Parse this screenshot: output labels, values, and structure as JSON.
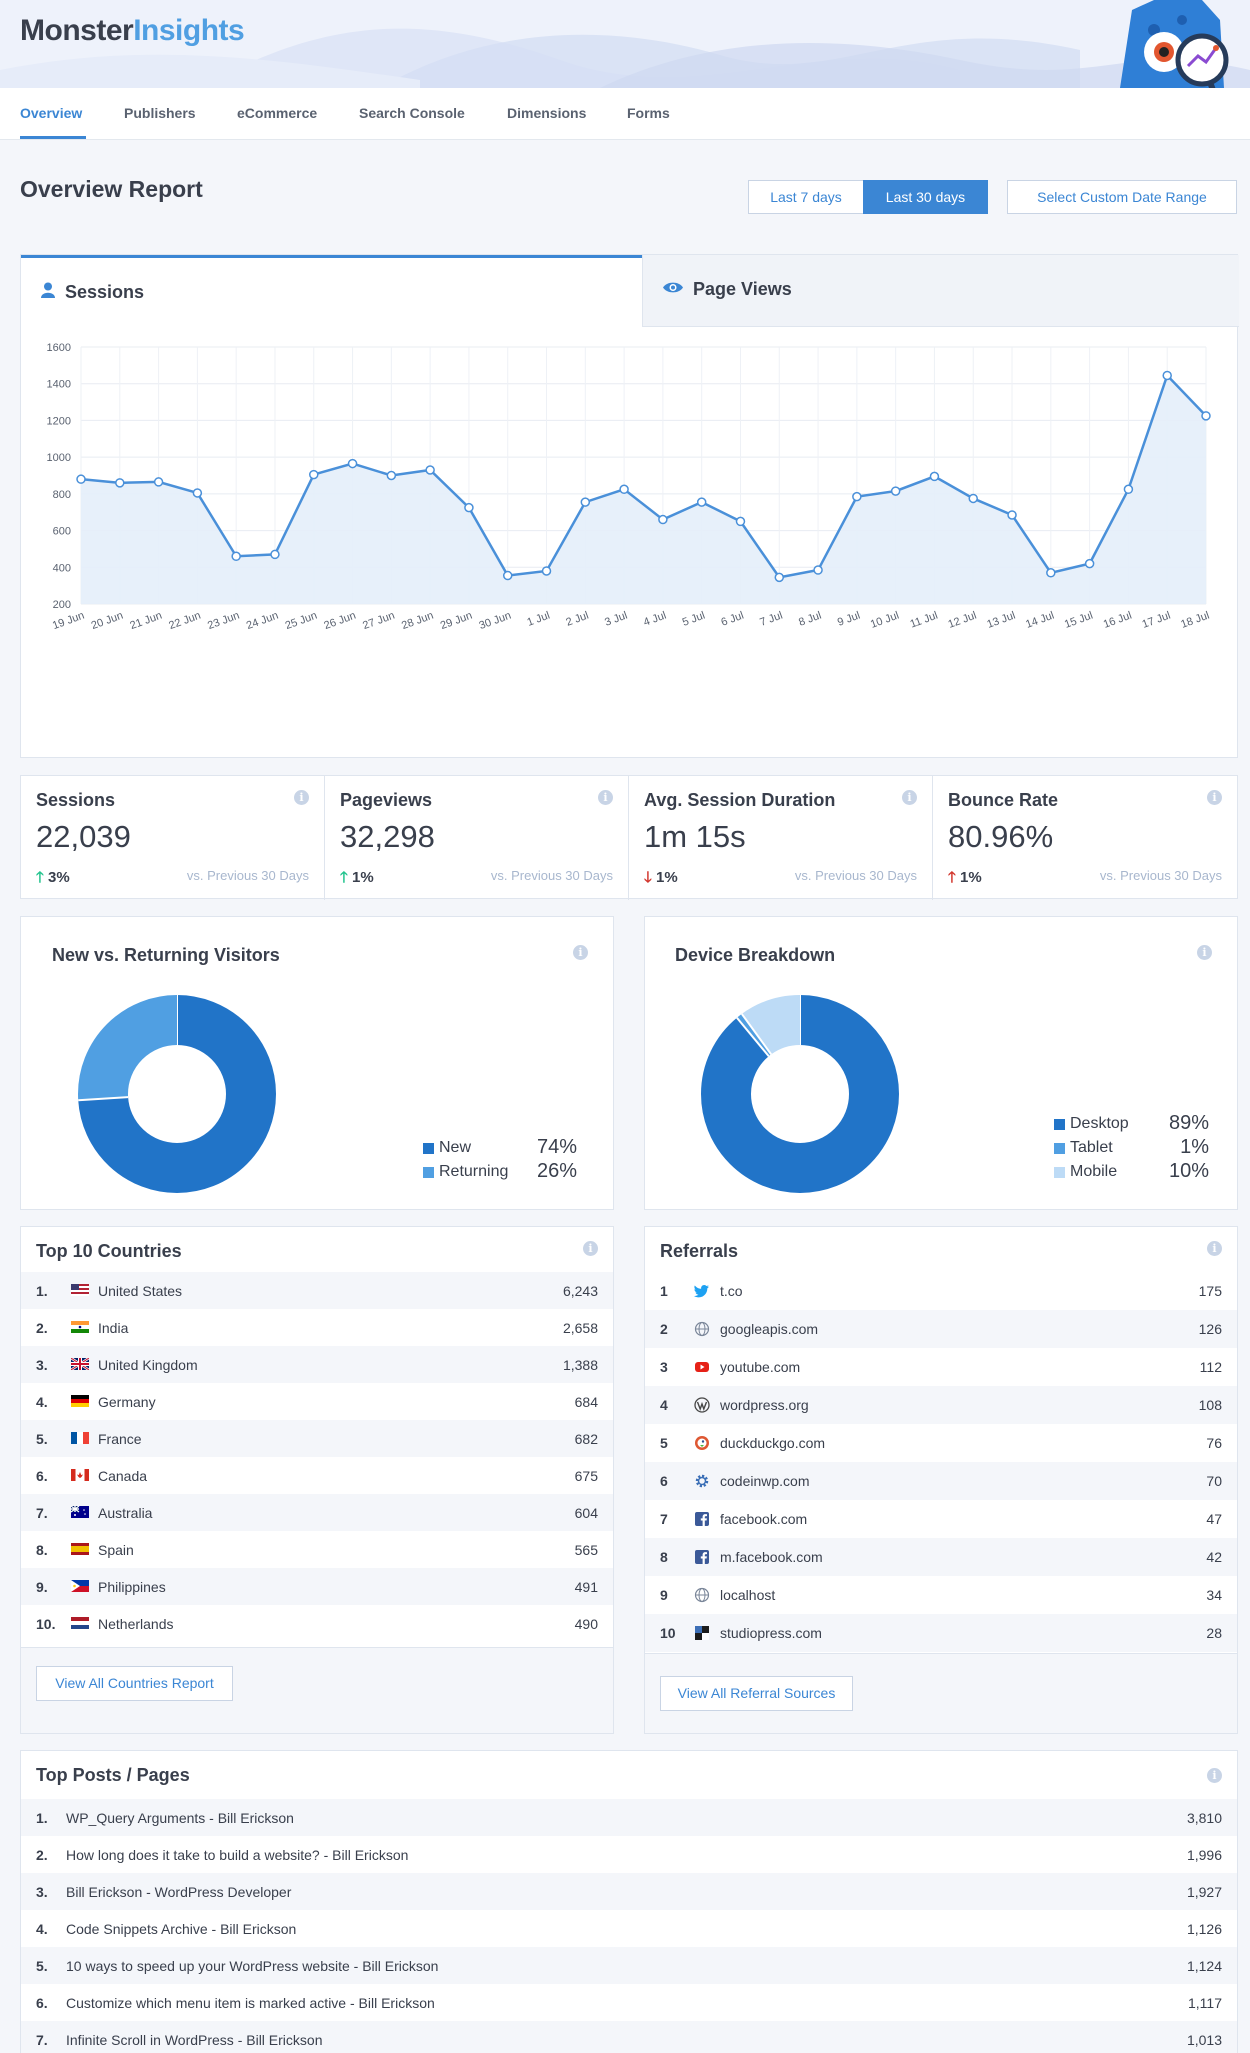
{
  "brand": {
    "part1": "Monster",
    "part2": "Insights"
  },
  "nav": {
    "items": [
      "Overview",
      "Publishers",
      "eCommerce",
      "Search Console",
      "Dimensions",
      "Forms"
    ],
    "active": "Overview"
  },
  "page_title": "Overview Report",
  "date_buttons": {
    "last7": "Last 7 days",
    "last30": "Last 30 days",
    "custom": "Select Custom Date Range",
    "active": "Last 30 days"
  },
  "chart_tabs": {
    "sessions": "Sessions",
    "pageviews": "Page Views",
    "active": "Sessions"
  },
  "chart_data": {
    "type": "area",
    "title": "",
    "xlabel": "",
    "ylabel": "",
    "ylim": [
      200,
      1600
    ],
    "yticks": [
      200,
      400,
      600,
      800,
      1000,
      1200,
      1400,
      1600
    ],
    "grid": true,
    "categories": [
      "19 Jun",
      "20 Jun",
      "21 Jun",
      "22 Jun",
      "23 Jun",
      "24 Jun",
      "25 Jun",
      "26 Jun",
      "27 Jun",
      "28 Jun",
      "29 Jun",
      "30 Jun",
      "1 Jul",
      "2 Jul",
      "3 Jul",
      "4 Jul",
      "5 Jul",
      "6 Jul",
      "7 Jul",
      "8 Jul",
      "9 Jul",
      "10 Jul",
      "11 Jul",
      "12 Jul",
      "13 Jul",
      "14 Jul",
      "15 Jul",
      "16 Jul",
      "17 Jul",
      "18 Jul"
    ],
    "values": [
      880,
      860,
      865,
      805,
      460,
      470,
      905,
      965,
      900,
      930,
      725,
      355,
      380,
      755,
      825,
      660,
      755,
      650,
      345,
      385,
      785,
      815,
      895,
      775,
      685,
      370,
      420,
      825,
      1445,
      1225
    ],
    "colors": {
      "line": "#4a90d9",
      "fill": "#e4eef9",
      "marker_fill": "#ffffff"
    }
  },
  "stats": [
    {
      "label": "Sessions",
      "value": "22,039",
      "change": "3%",
      "direction": "up",
      "compare": "vs. Previous 30 Days"
    },
    {
      "label": "Pageviews",
      "value": "32,298",
      "change": "1%",
      "direction": "up",
      "compare": "vs. Previous 30 Days"
    },
    {
      "label": "Avg. Session Duration",
      "value": "1m 15s",
      "change": "1%",
      "direction": "down",
      "compare": "vs. Previous 30 Days"
    },
    {
      "label": "Bounce Rate",
      "value": "80.96%",
      "change": "1%",
      "direction": "up",
      "compare": "vs. Previous 30 Days"
    }
  ],
  "visitors": {
    "title": "New vs. Returning Visitors",
    "legend": [
      {
        "label": "New",
        "value": "74%",
        "pct": 74,
        "color": "#2174c8"
      },
      {
        "label": "Returning",
        "value": "26%",
        "pct": 26,
        "color": "#509fe2"
      }
    ]
  },
  "devices": {
    "title": "Device Breakdown",
    "legend": [
      {
        "label": "Desktop",
        "value": "89%",
        "pct": 89,
        "color": "#2174c8"
      },
      {
        "label": "Tablet",
        "value": "1%",
        "pct": 1,
        "color": "#509fe2"
      },
      {
        "label": "Mobile",
        "value": "10%",
        "pct": 10,
        "color": "#bddbf6"
      }
    ]
  },
  "countries": {
    "title": "Top 10 Countries",
    "button": "View All Countries Report",
    "rows": [
      {
        "num": "1.",
        "name": "United States",
        "value": "6,243",
        "flag": "us"
      },
      {
        "num": "2.",
        "name": "India",
        "value": "2,658",
        "flag": "in"
      },
      {
        "num": "3.",
        "name": "United Kingdom",
        "value": "1,388",
        "flag": "gb"
      },
      {
        "num": "4.",
        "name": "Germany",
        "value": "684",
        "flag": "de"
      },
      {
        "num": "5.",
        "name": "France",
        "value": "682",
        "flag": "fr"
      },
      {
        "num": "6.",
        "name": "Canada",
        "value": "675",
        "flag": "ca"
      },
      {
        "num": "7.",
        "name": "Australia",
        "value": "604",
        "flag": "au"
      },
      {
        "num": "8.",
        "name": "Spain",
        "value": "565",
        "flag": "es"
      },
      {
        "num": "9.",
        "name": "Philippines",
        "value": "491",
        "flag": "ph"
      },
      {
        "num": "10.",
        "name": "Netherlands",
        "value": "490",
        "flag": "nl"
      }
    ]
  },
  "referrals": {
    "title": "Referrals",
    "button": "View All Referral Sources",
    "rows": [
      {
        "num": "1",
        "name": "t.co",
        "value": "175",
        "icon": "twitter-icon"
      },
      {
        "num": "2",
        "name": "googleapis.com",
        "value": "126",
        "icon": "globe-icon"
      },
      {
        "num": "3",
        "name": "youtube.com",
        "value": "112",
        "icon": "youtube-icon"
      },
      {
        "num": "4",
        "name": "wordpress.org",
        "value": "108",
        "icon": "wordpress-icon"
      },
      {
        "num": "5",
        "name": "duckduckgo.com",
        "value": "76",
        "icon": "duckduckgo-icon"
      },
      {
        "num": "6",
        "name": "codeinwp.com",
        "value": "70",
        "icon": "gear-icon"
      },
      {
        "num": "7",
        "name": "facebook.com",
        "value": "47",
        "icon": "facebook-icon"
      },
      {
        "num": "8",
        "name": "m.facebook.com",
        "value": "42",
        "icon": "facebook-icon"
      },
      {
        "num": "9",
        "name": "localhost",
        "value": "34",
        "icon": "globe-icon"
      },
      {
        "num": "10",
        "name": "studiopress.com",
        "value": "28",
        "icon": "studiopress-icon"
      }
    ]
  },
  "top_posts": {
    "title": "Top Posts / Pages",
    "rows": [
      {
        "num": "1.",
        "name": "WP_Query Arguments - Bill Erickson",
        "value": "3,810"
      },
      {
        "num": "2.",
        "name": "How long does it take to build a website? - Bill Erickson",
        "value": "1,996"
      },
      {
        "num": "3.",
        "name": "Bill Erickson - WordPress Developer",
        "value": "1,927"
      },
      {
        "num": "4.",
        "name": "Code Snippets Archive - Bill Erickson",
        "value": "1,126"
      },
      {
        "num": "5.",
        "name": "10 ways to speed up your WordPress website - Bill Erickson",
        "value": "1,124"
      },
      {
        "num": "6.",
        "name": "Customize which menu item is marked active - Bill Erickson",
        "value": "1,117"
      },
      {
        "num": "7.",
        "name": "Infinite Scroll in WordPress - Bill Erickson",
        "value": "1,013"
      }
    ]
  },
  "colors": {
    "accent": "#3b86d4",
    "up": "#23c48e",
    "down": "#d2362d"
  }
}
